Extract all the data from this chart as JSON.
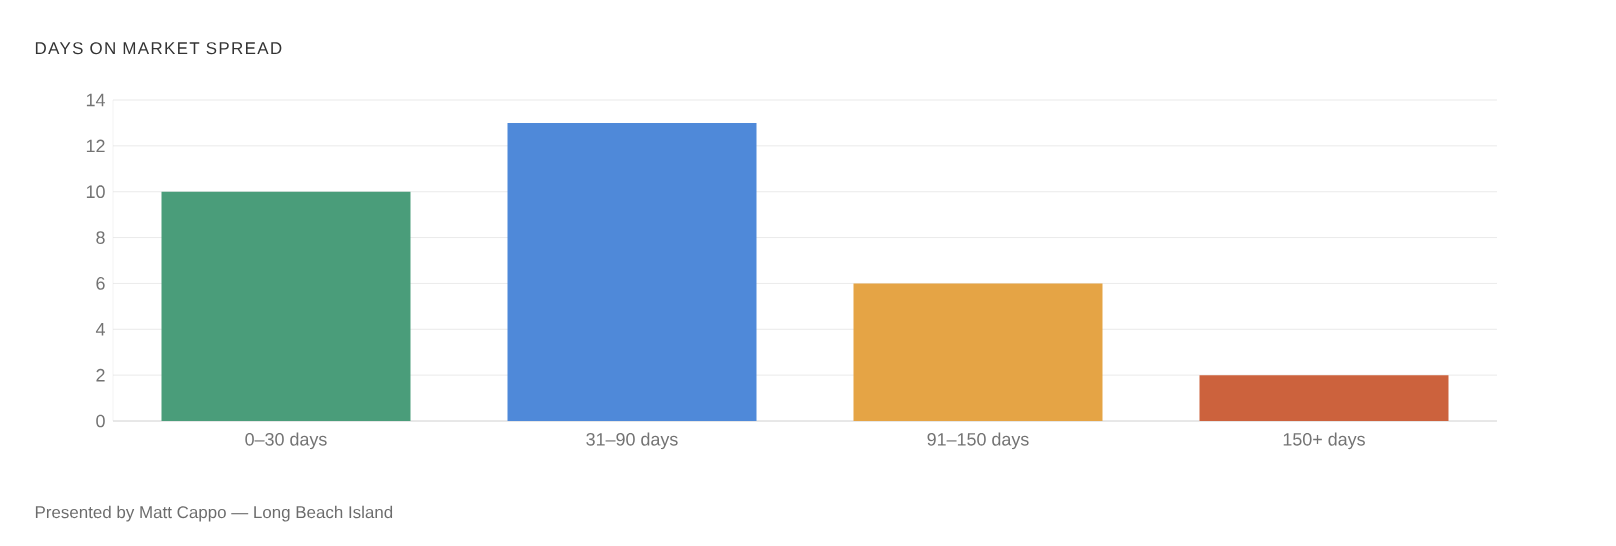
{
  "chart_data": {
    "type": "bar",
    "title": "DAYS ON MARKET SPREAD",
    "categories": [
      "0–30 days",
      "31–90 days",
      "91–150 days",
      "150+ days"
    ],
    "values": [
      10,
      13,
      6,
      2
    ],
    "colors": [
      "#4a9d7a",
      "#4f89d9",
      "#e5a445",
      "#cc623d"
    ],
    "ylim": [
      0,
      14
    ],
    "yticks": [
      0,
      2,
      4,
      6,
      8,
      10,
      12,
      14
    ],
    "grid": "y",
    "annotations": [
      "Presented by Matt Cappo — Long Beach Island"
    ]
  }
}
